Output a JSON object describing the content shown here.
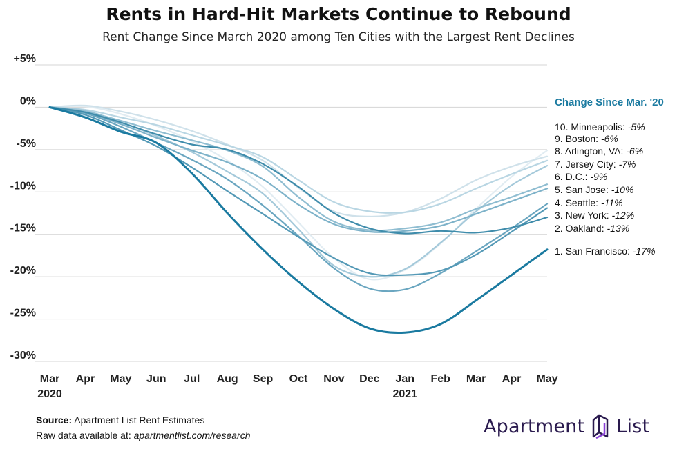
{
  "header": {
    "title": "Rents in Hard-Hit Markets Continue to Rebound",
    "subtitle": "Rent Change Since March 2020 among Ten Cities with the Largest Rent Declines"
  },
  "footer": {
    "source_label": "Source:",
    "source_text": " Apartment List Rent Estimates",
    "raw_label": "Raw data available at: ",
    "raw_link": "apartmentlist.com/research"
  },
  "logo": {
    "word1": "Apartment",
    "word2": "List"
  },
  "chart_data": {
    "type": "line",
    "x": [
      "Mar",
      "Apr",
      "May",
      "Jun",
      "Jul",
      "Aug",
      "Sep",
      "Oct",
      "Nov",
      "Dec",
      "Jan",
      "Feb",
      "Mar",
      "Apr",
      "May"
    ],
    "x_year_labels": [
      {
        "index": 0,
        "label": "2020"
      },
      {
        "index": 10,
        "label": "2021"
      }
    ],
    "y_ticks": [
      "+5%",
      "0%",
      "-5%",
      "-10%",
      "-15%",
      "-20%",
      "-25%",
      "-30%"
    ],
    "y_tick_values": [
      5,
      0,
      -5,
      -10,
      -15,
      -20,
      -25,
      -30
    ],
    "ylim": [
      -30,
      5
    ],
    "grid": true,
    "legend_title": "Change Since Mar. '20",
    "legend_position": "right",
    "series": [
      {
        "rank": "10.",
        "name": "Minneapolis",
        "value_label": "-5%",
        "color": "#e1ecf2",
        "values": [
          0,
          0.1,
          -0.8,
          -2.2,
          -4.0,
          -6.3,
          -9.4,
          -13.6,
          -17.8,
          -20.3,
          -19.2,
          -16.1,
          -12.0,
          -8.2,
          -5.1
        ]
      },
      {
        "rank": "9.",
        "name": "Boston",
        "value_label": "-6%",
        "color": "#cfe1ea",
        "values": [
          0,
          0.2,
          -0.5,
          -1.5,
          -2.8,
          -4.4,
          -6.3,
          -9.5,
          -12.3,
          -12.9,
          -12.4,
          -10.8,
          -8.6,
          -7.0,
          -5.8
        ]
      },
      {
        "rank": "8.",
        "name": "Arlington, VA",
        "value_label": "-6%",
        "color": "#b9d6e3",
        "values": [
          0,
          -0.3,
          -1.2,
          -2.1,
          -3.3,
          -4.5,
          -5.9,
          -8.6,
          -11.2,
          -12.3,
          -12.4,
          -11.4,
          -9.6,
          -7.9,
          -6.3
        ]
      },
      {
        "rank": "7.",
        "name": "Jersey City",
        "value_label": "-7%",
        "color": "#a4c9da",
        "values": [
          0,
          -0.4,
          -1.8,
          -3.4,
          -5.3,
          -7.6,
          -10.2,
          -14.4,
          -18.7,
          -20.0,
          -19.1,
          -16.0,
          -12.3,
          -9.2,
          -6.9
        ]
      },
      {
        "rank": "6.",
        "name": "D.C.",
        "value_label": "-9%",
        "color": "#8fbdd1",
        "values": [
          0,
          -0.5,
          -1.6,
          -2.8,
          -3.9,
          -5.1,
          -7.0,
          -10.6,
          -13.5,
          -14.5,
          -14.3,
          -13.6,
          -12.0,
          -10.6,
          -9.1
        ]
      },
      {
        "rank": "5.",
        "name": "San Jose",
        "value_label": "-10%",
        "color": "#7db2c9",
        "values": [
          0,
          -0.6,
          -2.0,
          -3.6,
          -5.1,
          -6.5,
          -8.5,
          -11.5,
          -13.8,
          -14.7,
          -14.6,
          -14.0,
          -12.6,
          -11.1,
          -9.6
        ]
      },
      {
        "rank": "4.",
        "name": "Seattle",
        "value_label": "-11%",
        "color": "#6aa6c0",
        "values": [
          0,
          -0.7,
          -2.3,
          -4.2,
          -6.2,
          -8.5,
          -11.6,
          -15.2,
          -19.0,
          -21.4,
          -21.5,
          -19.6,
          -17.0,
          -14.3,
          -11.4
        ]
      },
      {
        "rank": "3.",
        "name": "New York",
        "value_label": "-12%",
        "color": "#5499b6",
        "values": [
          0,
          -0.9,
          -2.7,
          -4.6,
          -7.1,
          -9.9,
          -12.6,
          -15.3,
          -17.8,
          -19.6,
          -19.8,
          -19.3,
          -17.4,
          -14.7,
          -11.9
        ]
      },
      {
        "rank": "2.",
        "name": "Oakland",
        "value_label": "-13%",
        "color": "#3f8cab",
        "values": [
          0,
          -0.6,
          -1.8,
          -3.2,
          -4.4,
          -5.0,
          -6.7,
          -9.4,
          -12.5,
          -14.3,
          -14.9,
          -14.6,
          -14.8,
          -14.2,
          -13.0
        ]
      },
      {
        "rank": "1.",
        "name": "San Francisco",
        "value_label": "-17%",
        "color": "#1a7aa0",
        "values": [
          0,
          -1.2,
          -2.9,
          -4.2,
          -7.8,
          -12.5,
          -16.8,
          -20.6,
          -23.8,
          -26.1,
          -26.6,
          -25.6,
          -22.8,
          -19.8,
          -16.8
        ]
      }
    ]
  }
}
